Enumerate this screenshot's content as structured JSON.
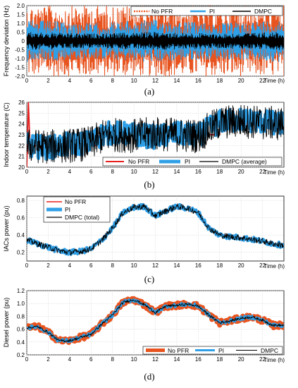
{
  "colors": {
    "no_pfr": "#e8541f",
    "pi": "#2f9fe6",
    "dmpc": "#000000",
    "no_pfr_line": "#e81f1f"
  },
  "chart_data": [
    {
      "type": "line",
      "caption": "(a)",
      "ylabel": "Frequency deviation (Hz)",
      "xlabel": "Time (h)",
      "xlim": [
        0,
        24
      ],
      "ylim": [
        -2.0,
        2.0
      ],
      "xticks": [
        "0",
        "2",
        "4",
        "6",
        "8",
        "10",
        "12",
        "14",
        "16",
        "18",
        "20",
        "22"
      ],
      "yticks": [
        "-2.0",
        "-1.5",
        "-1.0",
        "-0.5",
        "0",
        "0.5",
        "1.0",
        "1.5",
        "2.0"
      ],
      "legend": [
        "No PFR",
        "PI",
        "DMPC"
      ],
      "legend_position": "top-right",
      "series": [
        {
          "name": "No PFR",
          "band_min": [
            -2.0,
            -2.0,
            -2.0,
            -2.0,
            -2.0
          ],
          "band_max": [
            2.0,
            2.0,
            2.0,
            2.0,
            2.0
          ],
          "x": [
            0,
            6,
            12,
            18,
            24
          ]
        },
        {
          "name": "PI",
          "band_min": [
            -1.2,
            -1.0,
            -1.2,
            -1.0,
            -1.2
          ],
          "band_max": [
            1.2,
            1.0,
            1.2,
            1.0,
            1.2
          ],
          "x": [
            0,
            6,
            12,
            18,
            24
          ]
        },
        {
          "name": "DMPC",
          "band_min": [
            -0.5,
            -0.4,
            -0.5,
            -0.4,
            -0.5
          ],
          "band_max": [
            0.5,
            0.4,
            0.5,
            0.4,
            0.5
          ],
          "x": [
            0,
            6,
            12,
            18,
            24
          ]
        }
      ]
    },
    {
      "type": "line",
      "caption": "(b)",
      "ylabel": "Indoor temperature (C)",
      "xlabel": "Time (h)",
      "xlim": [
        0,
        24
      ],
      "ylim": [
        20,
        26
      ],
      "xticks": [
        "0",
        "2",
        "4",
        "6",
        "8",
        "10",
        "12",
        "14",
        "16",
        "18",
        "20",
        "22"
      ],
      "yticks": [
        "20",
        "21",
        "22",
        "23",
        "24",
        "25",
        "26"
      ],
      "legend": [
        "No PFR",
        "PI",
        "DMPC (average)"
      ],
      "legend_position": "bottom-right",
      "series": [
        {
          "name": "No PFR",
          "x": [
            0,
            0.15,
            0.3,
            7,
            7,
            18,
            18,
            24
          ],
          "y": [
            20,
            26,
            22,
            22,
            23,
            23,
            24,
            24
          ]
        },
        {
          "name": "PI",
          "x": [
            0,
            2,
            4,
            6,
            7,
            8,
            10,
            12,
            14,
            16,
            18,
            20,
            22,
            24
          ],
          "y": [
            22,
            21.8,
            22.1,
            22.3,
            23.0,
            23.2,
            23.0,
            22.8,
            23.1,
            22.9,
            24.2,
            24.4,
            24.2,
            24.0
          ]
        },
        {
          "name": "DMPC (average)",
          "x": [
            0,
            2,
            4,
            6,
            7,
            8,
            10,
            12,
            14,
            16,
            18,
            20,
            22,
            24
          ],
          "y": [
            22,
            21.9,
            22.0,
            22.2,
            22.8,
            23.0,
            22.9,
            23.1,
            23.0,
            22.9,
            24.1,
            24.3,
            24.1,
            24.0
          ]
        }
      ]
    },
    {
      "type": "line",
      "caption": "(c)",
      "ylabel": "IACs power (pu)",
      "xlabel": "Time (h)",
      "xlim": [
        0,
        24
      ],
      "ylim": [
        0.1,
        0.85
      ],
      "xticks": [
        "0",
        "2",
        "4",
        "6",
        "8",
        "10",
        "12",
        "14",
        "16",
        "18",
        "20",
        "22"
      ],
      "yticks": [
        "0.2",
        "0.4",
        "0.6",
        "0.8"
      ],
      "legend": [
        "No PFR",
        "PI",
        "DMPC (total)"
      ],
      "legend_position": "top-left",
      "series": [
        {
          "name": "No PFR",
          "x": [
            0,
            0.3,
            1,
            2,
            3,
            4,
            5,
            6,
            7,
            8,
            9,
            10,
            11,
            12,
            13,
            14,
            15,
            16,
            17,
            18,
            19,
            20,
            21,
            22,
            23,
            24
          ],
          "y": [
            0.34,
            0.33,
            0.3,
            0.26,
            0.22,
            0.2,
            0.21,
            0.24,
            0.34,
            0.48,
            0.66,
            0.72,
            0.73,
            0.62,
            0.68,
            0.73,
            0.71,
            0.66,
            0.48,
            0.4,
            0.38,
            0.37,
            0.35,
            0.33,
            0.3,
            0.28
          ]
        },
        {
          "name": "PI",
          "x": [
            0,
            0.3,
            1,
            2,
            3,
            4,
            5,
            6,
            7,
            8,
            9,
            10,
            11,
            12,
            13,
            14,
            15,
            16,
            17,
            18,
            19,
            20,
            21,
            22,
            23,
            24
          ],
          "y": [
            0.34,
            0.33,
            0.3,
            0.26,
            0.22,
            0.2,
            0.21,
            0.24,
            0.34,
            0.48,
            0.66,
            0.72,
            0.73,
            0.62,
            0.68,
            0.73,
            0.71,
            0.66,
            0.48,
            0.4,
            0.38,
            0.37,
            0.35,
            0.33,
            0.3,
            0.28
          ]
        },
        {
          "name": "DMPC (total)",
          "x": [
            0,
            0.3,
            1,
            2,
            3,
            4,
            5,
            6,
            7,
            8,
            9,
            10,
            11,
            12,
            13,
            14,
            15,
            16,
            17,
            18,
            19,
            20,
            21,
            22,
            23,
            24
          ],
          "y": [
            0.34,
            0.33,
            0.3,
            0.26,
            0.22,
            0.2,
            0.21,
            0.24,
            0.34,
            0.48,
            0.66,
            0.72,
            0.73,
            0.62,
            0.68,
            0.73,
            0.71,
            0.66,
            0.48,
            0.4,
            0.38,
            0.37,
            0.35,
            0.33,
            0.3,
            0.28
          ]
        }
      ]
    },
    {
      "type": "line",
      "caption": "(d)",
      "ylabel": "Diesel power (pu)",
      "xlabel": "Time (h)",
      "xlim": [
        0,
        24
      ],
      "ylim": [
        0.2,
        1.2
      ],
      "xticks": [
        "0",
        "2",
        "4",
        "6",
        "8",
        "10",
        "12",
        "14",
        "16",
        "18",
        "20",
        "22"
      ],
      "yticks": [
        "0.2",
        "0.4",
        "0.6",
        "0.8",
        "1.0",
        "1.2"
      ],
      "legend": [
        "No PFR",
        "PI",
        "DMPC"
      ],
      "legend_position": "bottom-right",
      "series": [
        {
          "name": "No PFR",
          "x": [
            0,
            1,
            2,
            3,
            4,
            5,
            6,
            7,
            8,
            9,
            10,
            11,
            12,
            13,
            14,
            15,
            16,
            17,
            18,
            19,
            20,
            21,
            22,
            23,
            24
          ],
          "y": [
            0.62,
            0.64,
            0.55,
            0.42,
            0.42,
            0.47,
            0.52,
            0.68,
            0.82,
            1.02,
            1.06,
            0.98,
            0.86,
            0.96,
            0.97,
            0.99,
            0.96,
            0.82,
            0.7,
            0.73,
            0.77,
            0.79,
            0.74,
            0.66,
            0.66
          ]
        },
        {
          "name": "PI",
          "x": [
            0,
            1,
            2,
            3,
            4,
            5,
            6,
            7,
            8,
            9,
            10,
            11,
            12,
            13,
            14,
            15,
            16,
            17,
            18,
            19,
            20,
            21,
            22,
            23,
            24
          ],
          "y": [
            0.62,
            0.64,
            0.55,
            0.42,
            0.42,
            0.47,
            0.52,
            0.68,
            0.82,
            1.02,
            1.06,
            0.98,
            0.86,
            0.96,
            0.97,
            0.99,
            0.96,
            0.82,
            0.7,
            0.73,
            0.77,
            0.79,
            0.74,
            0.66,
            0.66
          ]
        },
        {
          "name": "DMPC",
          "x": [
            0,
            1,
            2,
            3,
            4,
            5,
            6,
            7,
            8,
            9,
            10,
            11,
            12,
            13,
            14,
            15,
            16,
            17,
            18,
            19,
            20,
            21,
            22,
            23,
            24
          ],
          "y": [
            0.62,
            0.64,
            0.55,
            0.42,
            0.42,
            0.47,
            0.52,
            0.68,
            0.82,
            1.02,
            1.06,
            0.98,
            0.86,
            0.96,
            0.97,
            0.99,
            0.96,
            0.82,
            0.7,
            0.73,
            0.77,
            0.79,
            0.74,
            0.66,
            0.66
          ]
        }
      ]
    }
  ]
}
